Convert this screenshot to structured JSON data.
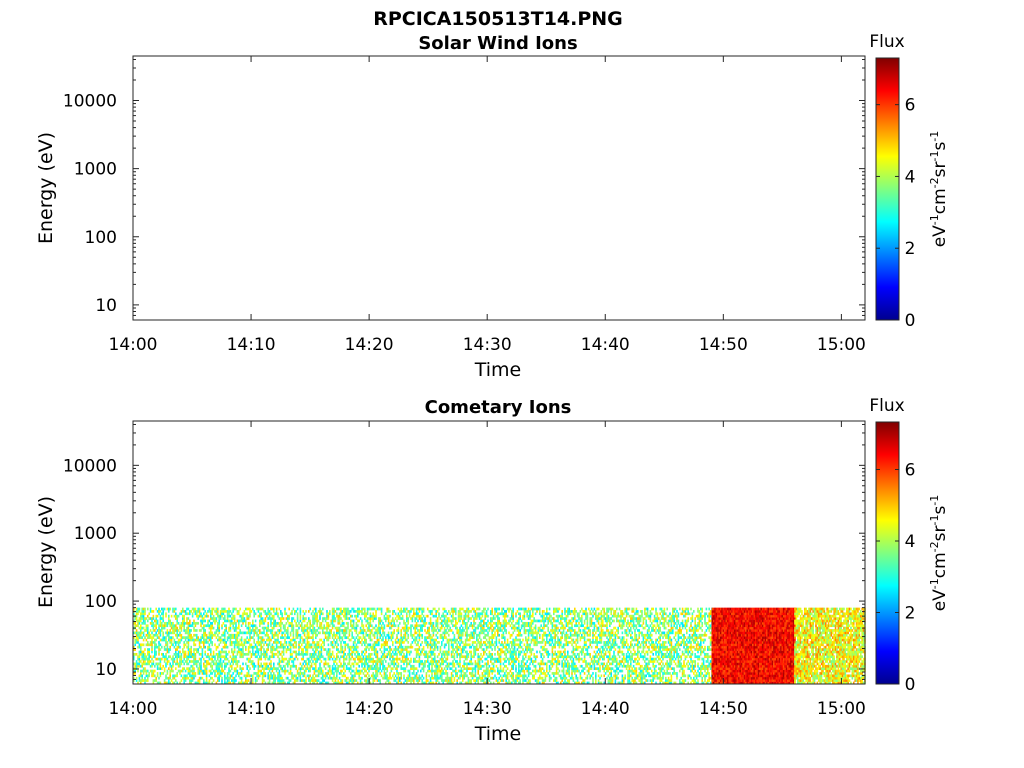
{
  "figure": {
    "title": "RPCICA150513T14.PNG"
  },
  "colors": {
    "axis": "#262626",
    "colormap": [
      "#00008f",
      "#0000ff",
      "#0080ff",
      "#00ffff",
      "#80ff80",
      "#ffff00",
      "#ff8000",
      "#ff0000",
      "#800000"
    ]
  },
  "chart_data": [
    {
      "type": "heatmap",
      "title": "Solar Wind Ions",
      "xlabel": "Time",
      "ylabel": "Energy (eV)",
      "x_ticks": [
        "14:00",
        "14:10",
        "14:20",
        "14:30",
        "14:40",
        "14:50",
        "15:00"
      ],
      "xlim": [
        "14:00",
        "15:02"
      ],
      "y_scale": "log",
      "y_ticks": [
        10,
        100,
        1000,
        10000
      ],
      "y_tick_labels": [
        "10",
        "100",
        "1000",
        "10000"
      ],
      "ylim": [
        6,
        45000
      ],
      "colorbar": {
        "title": "Flux",
        "label": "eV-1cm-2sr-1s-1",
        "range": [
          0,
          7.3
        ],
        "ticks": [
          0,
          2,
          4,
          6
        ],
        "tick_labels": [
          "0",
          "2",
          "4",
          "6"
        ]
      },
      "series": []
    },
    {
      "type": "heatmap",
      "title": "Cometary Ions",
      "xlabel": "Time",
      "ylabel": "Energy (eV)",
      "x_ticks": [
        "14:00",
        "14:10",
        "14:20",
        "14:30",
        "14:40",
        "14:50",
        "15:00"
      ],
      "xlim": [
        "14:00",
        "15:02"
      ],
      "y_scale": "log",
      "y_ticks": [
        10,
        100,
        1000,
        10000
      ],
      "y_tick_labels": [
        "10",
        "100",
        "1000",
        "10000"
      ],
      "ylim": [
        6,
        45000
      ],
      "colorbar": {
        "title": "Flux",
        "label": "eV-1cm-2sr-1s-1",
        "range": [
          0,
          7.3
        ],
        "ticks": [
          0,
          2,
          4,
          6
        ],
        "tick_labels": [
          "0",
          "2",
          "4",
          "6"
        ]
      },
      "energy_range": [
        6,
        80
      ],
      "flux_profile": [
        {
          "start": "14:00",
          "end": "14:49",
          "energy_min": 6,
          "energy_max": 80,
          "flux_min": 2.5,
          "flux_max": 5.0,
          "coverage": 0.55
        },
        {
          "start": "14:49",
          "end": "14:56",
          "energy_min": 6,
          "energy_max": 80,
          "flux_min": 5.8,
          "flux_max": 7.0,
          "coverage": 1.0
        },
        {
          "start": "14:56",
          "end": "15:02",
          "energy_min": 6,
          "energy_max": 80,
          "flux_min": 3.5,
          "flux_max": 5.5,
          "coverage": 0.85
        }
      ],
      "peak_flux": 7.0
    }
  ]
}
